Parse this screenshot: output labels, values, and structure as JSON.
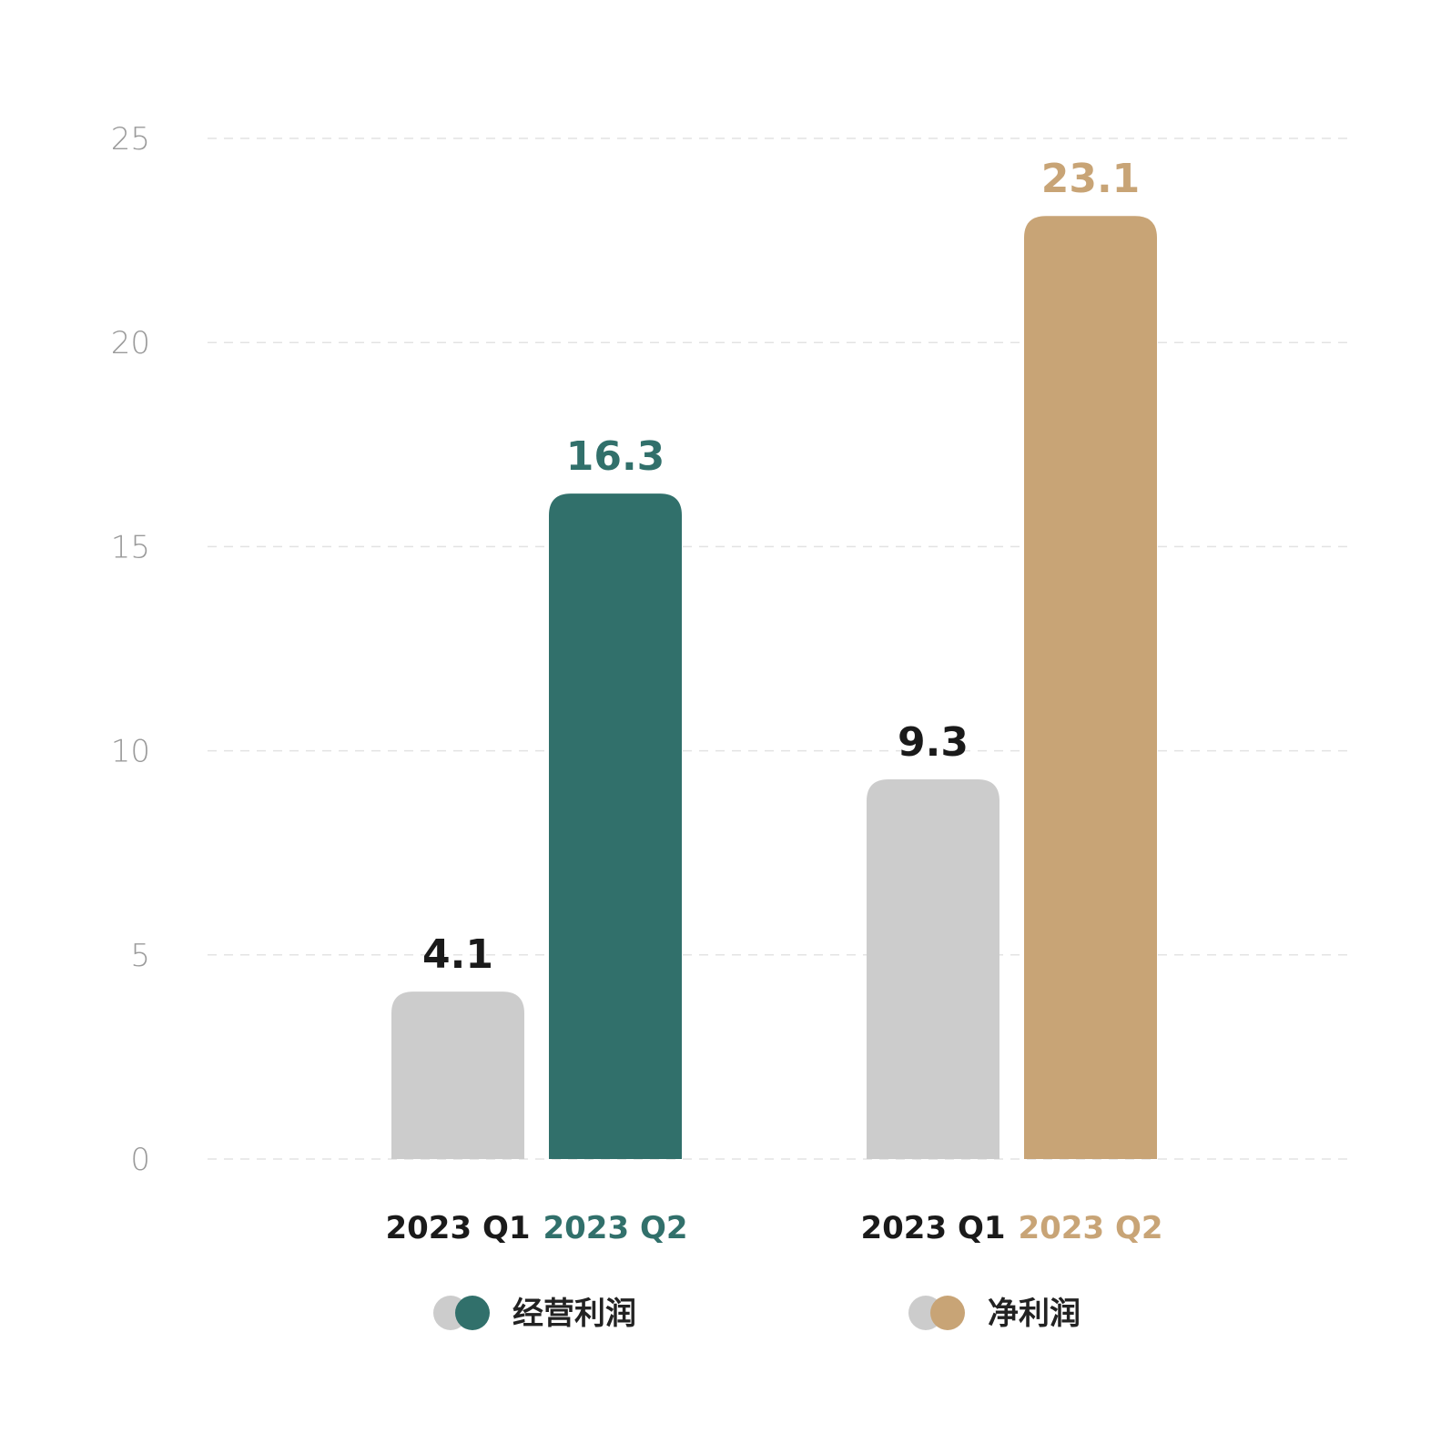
{
  "chart_data": {
    "type": "bar",
    "ylim": [
      0,
      25
    ],
    "yticks": [
      0,
      5,
      10,
      15,
      20,
      25
    ],
    "grid": true,
    "legend_position": "bottom",
    "groups": [
      {
        "name": "经营利润",
        "bars": [
          {
            "label": "2023 Q1",
            "value": 4.1,
            "value_label": "4.1",
            "color": "#cccccc",
            "label_color": "#1a1a1a"
          },
          {
            "label": "2023 Q2",
            "value": 16.3,
            "value_label": "16.3",
            "color": "#31706b",
            "label_color": "#31706b"
          }
        ]
      },
      {
        "name": "净利润",
        "bars": [
          {
            "label": "2023 Q1",
            "value": 9.3,
            "value_label": "9.3",
            "color": "#cccccc",
            "label_color": "#1a1a1a"
          },
          {
            "label": "2023 Q2",
            "value": 23.1,
            "value_label": "23.1",
            "color": "#c8a476",
            "label_color": "#c8a476"
          }
        ]
      }
    ]
  }
}
